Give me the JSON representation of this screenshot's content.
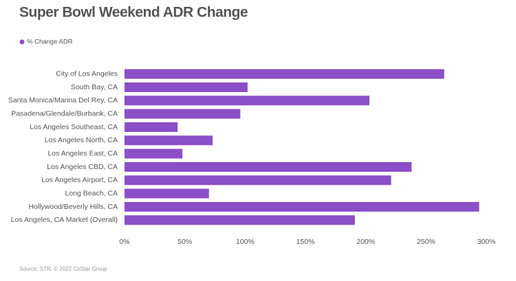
{
  "chart_data": {
    "type": "hbar",
    "title": "Super Bowl Weekend ADR Change",
    "source": "Source: STR. © 2022 CoStar Group",
    "categories": [
      "City of Los Angeles",
      "South Bay, CA",
      "Santa Monica/Marina Del Rey, CA",
      "Pasadena/Glendale/Burbank, CA",
      "Los Angeles Southeast, CA",
      "Los Angeles North, CA",
      "Los Angeles East, CA",
      "Los Angeles CBD, CA",
      "Los Angeles Airport, CA",
      "Long Beach, CA",
      "Hollywood/Beverly Hills, CA",
      "Los Angeles, CA Market (Overall)"
    ],
    "series": [
      {
        "name": "% Change ADR",
        "color": "#8b4fc8",
        "values": [
          265,
          102,
          203,
          96,
          44,
          73,
          48,
          238,
          221,
          70,
          294,
          191
        ]
      }
    ],
    "xlim": [
      0,
      300
    ],
    "xticks": [
      {
        "value": 0,
        "label": "0%"
      },
      {
        "value": 50,
        "label": "50%"
      },
      {
        "value": 100,
        "label": "100%"
      },
      {
        "value": 150,
        "label": "150%"
      },
      {
        "value": 200,
        "label": "200%"
      },
      {
        "value": 250,
        "label": "250%"
      },
      {
        "value": 300,
        "label": "300%"
      }
    ],
    "grid": false
  }
}
